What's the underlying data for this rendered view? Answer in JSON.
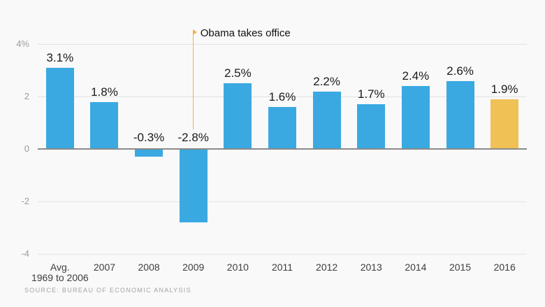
{
  "chart_data": {
    "type": "bar",
    "title": "",
    "categories": [
      "Avg.\n1969 to 2006",
      "2007",
      "2008",
      "2009",
      "2010",
      "2011",
      "2012",
      "2013",
      "2014",
      "2015",
      "2016"
    ],
    "values": [
      3.1,
      1.8,
      -0.3,
      -2.8,
      2.5,
      1.6,
      2.2,
      1.7,
      2.4,
      2.6,
      1.9
    ],
    "labels": [
      "3.1%",
      "1.8%",
      "-0.3%",
      "-2.8%",
      "2.5%",
      "1.6%",
      "2.2%",
      "1.7%",
      "2.4%",
      "2.6%",
      "1.9%"
    ],
    "xlabel": "",
    "ylabel": "",
    "ylim": [
      -4,
      4
    ],
    "grid": true,
    "legend": "none",
    "yticks": [
      {
        "value": 4,
        "label": "4%"
      },
      {
        "value": 2,
        "label": "2"
      },
      {
        "value": 0,
        "label": "0"
      },
      {
        "value": -2,
        "label": "-2"
      },
      {
        "value": -4,
        "label": "-4"
      }
    ],
    "highlight_index": 10,
    "annotation": {
      "label": "Obama takes office",
      "category_index": 3
    },
    "colors": {
      "bar": "#3aa9e2",
      "highlight": "#f0c155",
      "annotation": "#f2b344",
      "background": "#f9f9f9",
      "gridline": "#e3e3e3",
      "zero_line": "#8a8a8a"
    },
    "source": "SOURCE: BUREAU OF ECONOMIC ANALYSIS"
  }
}
